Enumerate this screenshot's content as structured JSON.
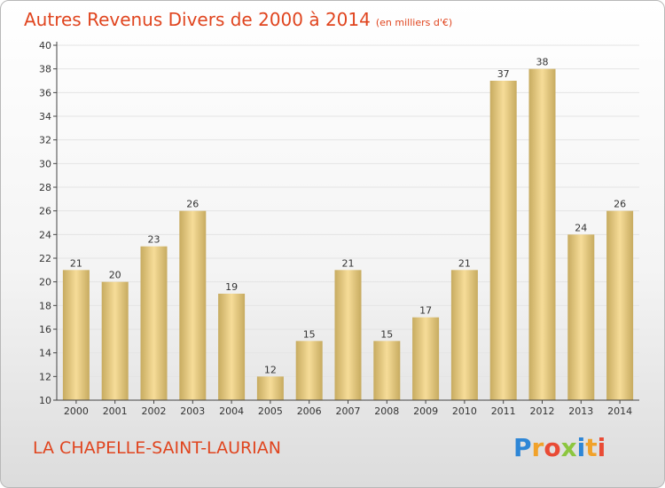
{
  "title": {
    "main": "Autres Revenus Divers de 2000 à 2014",
    "unit": "(en milliers d'€)"
  },
  "commune": "LA CHAPELLE-SAINT-LAURIAN",
  "logo": {
    "letters": [
      "P",
      "r",
      "o",
      "x",
      "i",
      "t",
      "i"
    ],
    "colors": [
      "#2e86d6",
      "#f1a22a",
      "#e94b35",
      "#8cc63f",
      "#2e86d6",
      "#f1a22a",
      "#e94b35"
    ]
  },
  "colors": {
    "bar_light": "#f6dc98",
    "bar_dark": "#c7ab60",
    "axis": "#444444",
    "grid": "#e4e4e4",
    "text_accent": "#e0451f"
  },
  "chart_data": {
    "type": "bar",
    "categories": [
      "2000",
      "2001",
      "2002",
      "2003",
      "2004",
      "2005",
      "2006",
      "2007",
      "2008",
      "2009",
      "2010",
      "2011",
      "2012",
      "2013",
      "2014"
    ],
    "values": [
      21,
      20,
      23,
      26,
      19,
      12,
      15,
      21,
      15,
      17,
      21,
      37,
      38,
      24,
      26
    ],
    "ylim": [
      10,
      40
    ],
    "yticks": [
      "10",
      "12",
      "14",
      "16",
      "18",
      "20",
      "22",
      "24",
      "26",
      "28",
      "30",
      "32",
      "34",
      "36",
      "38",
      "40"
    ],
    "grid": true,
    "data_labels": true
  }
}
